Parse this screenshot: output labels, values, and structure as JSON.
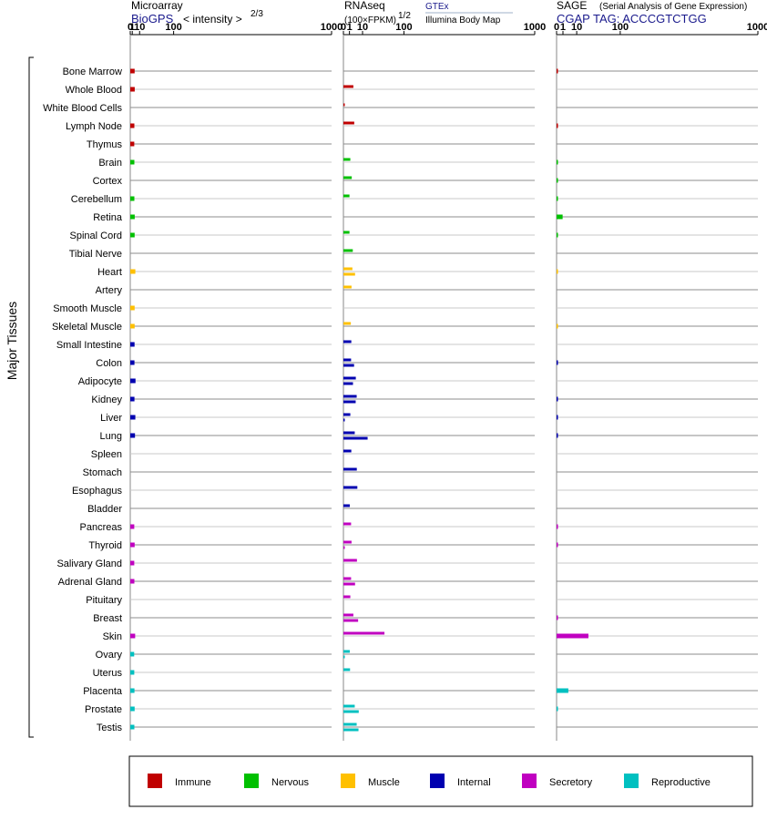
{
  "header": {
    "microarray_title": "Microarray",
    "microarray_source": "BioGPS",
    "microarray_metric": "< intensity >",
    "microarray_exp": "2/3",
    "rnaseq_title": "RNAseq",
    "rnaseq_metric": "(100×FPKM)",
    "rnaseq_exp": "1/2",
    "rnaseq_source1": "GTEx",
    "rnaseq_source2": "Illumina Body Map",
    "sage_title": "SAGE",
    "sage_subtitle": "(Serial Analysis of Gene Expression)",
    "sage_tag": "CGAP TAG: ACCCGTCTGG"
  },
  "y_axis_label": "Major Tissues",
  "colors": {
    "Immune": "#c00000",
    "Nervous": "#00c000",
    "Muscle": "#ffc000",
    "Internal": "#0000b0",
    "Secretory": "#c000c0",
    "Reproductive": "#00c0c0"
  },
  "chart_data": {
    "type": "bar",
    "x_scale": "power (microarray ^2/3, rnaseq ^1/2)",
    "x_ticks": [
      "0",
      "1",
      "10",
      "100",
      "1000"
    ],
    "xlim": [
      0,
      1000
    ],
    "categories": [
      "Bone Marrow",
      "Whole Blood",
      "White Blood Cells",
      "Lymph Node",
      "Thymus",
      "Brain",
      "Cortex",
      "Cerebellum",
      "Retina",
      "Spinal Cord",
      "Tibial Nerve",
      "Heart",
      "Artery",
      "Smooth Muscle",
      "Skeletal Muscle",
      "Small Intestine",
      "Colon",
      "Adipocyte",
      "Kidney",
      "Liver",
      "Lung",
      "Spleen",
      "Stomach",
      "Esophagus",
      "Bladder",
      "Pancreas",
      "Thyroid",
      "Salivary Gland",
      "Adrenal Gland",
      "Pituitary",
      "Breast",
      "Skin",
      "Ovary",
      "Uterus",
      "Placenta",
      "Prostate",
      "Testis"
    ],
    "groups": [
      "Immune",
      "Immune",
      "Immune",
      "Immune",
      "Immune",
      "Nervous",
      "Nervous",
      "Nervous",
      "Nervous",
      "Nervous",
      "Nervous",
      "Muscle",
      "Muscle",
      "Muscle",
      "Muscle",
      "Internal",
      "Internal",
      "Internal",
      "Internal",
      "Internal",
      "Internal",
      "Internal",
      "Internal",
      "Internal",
      "Internal",
      "Secretory",
      "Secretory",
      "Secretory",
      "Secretory",
      "Secretory",
      "Secretory",
      "Secretory",
      "Reproductive",
      "Reproductive",
      "Reproductive",
      "Reproductive",
      "Reproductive"
    ],
    "series": [
      {
        "name": "Microarray",
        "values": [
          3.2,
          3.3,
          null,
          2.9,
          2.8,
          2.9,
          null,
          2.9,
          3.3,
          3.2,
          null,
          4.0,
          null,
          3.2,
          3.2,
          3.1,
          3.0,
          4.2,
          3.0,
          4.0,
          3.6,
          null,
          null,
          null,
          null,
          2.8,
          3.2,
          2.8,
          2.9,
          null,
          null,
          3.8,
          2.7,
          2.8,
          3.0,
          3.2,
          2.9
        ]
      },
      {
        "name": "RNAseq GTEx",
        "values": [
          null,
          2.7,
          0.02,
          3.2,
          null,
          1.3,
          1.9,
          1.0,
          null,
          1.0,
          2.4,
          2.2,
          1.8,
          null,
          1.5,
          1.7,
          1.6,
          4.2,
          4.8,
          1.3,
          3.5,
          1.7,
          4.9,
          5.3,
          1.1,
          1.6,
          1.8,
          5.0,
          1.6,
          1.3,
          2.7,
          46,
          1.1,
          1.2,
          null,
          3.5,
          4.8
        ]
      },
      {
        "name": "RNAseq Illumina Body Map",
        "values": [
          null,
          null,
          null,
          null,
          null,
          null,
          null,
          null,
          null,
          null,
          null,
          3.7,
          null,
          null,
          null,
          null,
          3.1,
          2.5,
          4.1,
          0.01,
          16,
          null,
          null,
          null,
          null,
          null,
          0.01,
          null,
          3.7,
          null,
          5.9,
          null,
          0.01,
          null,
          null,
          6.4,
          6.2
        ]
      },
      {
        "name": "SAGE",
        "values": [
          0.02,
          null,
          null,
          0.02,
          null,
          0.01,
          0.01,
          0.01,
          0.9,
          0.01,
          null,
          0.005,
          null,
          null,
          0.01,
          null,
          0.02,
          null,
          0.02,
          0.02,
          0.02,
          null,
          null,
          null,
          null,
          0.02,
          0.02,
          null,
          null,
          null,
          0.02,
          25,
          null,
          null,
          3.4,
          0.01,
          null
        ]
      }
    ],
    "legend": [
      "Immune",
      "Nervous",
      "Muscle",
      "Internal",
      "Secretory",
      "Reproductive"
    ],
    "legend_position": "bottom",
    "grid": true
  }
}
